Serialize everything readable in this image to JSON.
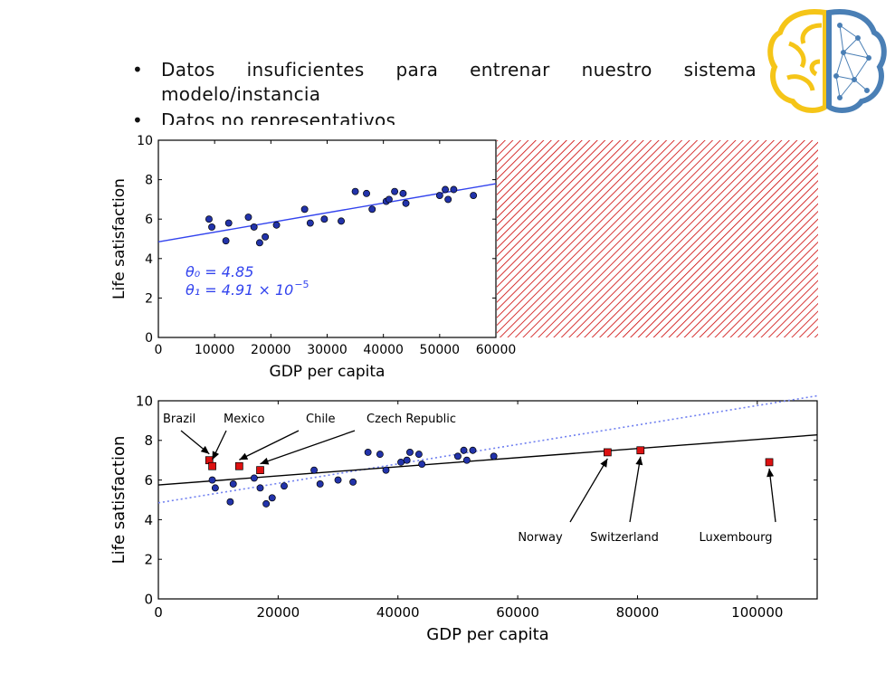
{
  "slide": {
    "bullets": [
      {
        "line1": "Datos insuficientes para entrenar nuestro sistema",
        "line2": "modelo/instancia"
      },
      {
        "line1": "Datos no representativos"
      }
    ],
    "bullet_glyph": "•",
    "logo_icon": "brain-logo-icon",
    "colors": {
      "logo_left": "#f5c518",
      "logo_right": "#4a7fb5"
    }
  },
  "chart_data": [
    {
      "type": "scatter",
      "xlabel": "GDP per capita",
      "ylabel": "Life satisfaction",
      "xlim": [
        0,
        60000
      ],
      "ylim": [
        0,
        10
      ],
      "xticks": [
        0,
        10000,
        20000,
        30000,
        40000,
        50000,
        60000
      ],
      "yticks": [
        0,
        2,
        4,
        6,
        8,
        10
      ],
      "points": [
        [
          9000,
          6.0
        ],
        [
          9500,
          5.6
        ],
        [
          12000,
          4.9
        ],
        [
          12500,
          5.8
        ],
        [
          16000,
          6.1
        ],
        [
          17000,
          5.6
        ],
        [
          18000,
          4.8
        ],
        [
          19000,
          5.1
        ],
        [
          21000,
          5.7
        ],
        [
          26000,
          6.5
        ],
        [
          27000,
          5.8
        ],
        [
          29500,
          6.0
        ],
        [
          32500,
          5.9
        ],
        [
          35000,
          7.4
        ],
        [
          37000,
          7.3
        ],
        [
          38000,
          6.5
        ],
        [
          40500,
          6.9
        ],
        [
          41000,
          7.0
        ],
        [
          42000,
          7.4
        ],
        [
          43500,
          7.3
        ],
        [
          44000,
          6.8
        ],
        [
          50000,
          7.2
        ],
        [
          51000,
          7.5
        ],
        [
          51500,
          7.0
        ],
        [
          52500,
          7.5
        ],
        [
          56000,
          7.2
        ]
      ],
      "fit": {
        "theta0": 4.85,
        "theta1": 4.91e-05,
        "color": "#3344ee"
      },
      "annotation_line1": "θ₀ = 4.85",
      "annotation_line2": "θ₁ = 4.91 × 10",
      "annotation_exp": "−5",
      "colors": {
        "points": "#2233aa",
        "fit": "#3344ee",
        "hatch": "#cc0000"
      }
    },
    {
      "type": "scatter",
      "xlabel": "GDP per capita",
      "ylabel": "Life satisfaction",
      "xlim": [
        0,
        110000
      ],
      "ylim": [
        0,
        10
      ],
      "xticks": [
        0,
        20000,
        40000,
        60000,
        80000,
        100000
      ],
      "yticks": [
        0,
        2,
        4,
        6,
        8,
        10
      ],
      "points": [
        [
          9000,
          6.0
        ],
        [
          9500,
          5.6
        ],
        [
          12000,
          4.9
        ],
        [
          12500,
          5.8
        ],
        [
          16000,
          6.1
        ],
        [
          17000,
          5.6
        ],
        [
          18000,
          4.8
        ],
        [
          19000,
          5.1
        ],
        [
          21000,
          5.7
        ],
        [
          26000,
          6.5
        ],
        [
          27000,
          5.8
        ],
        [
          30000,
          6.0
        ],
        [
          32500,
          5.9
        ],
        [
          35000,
          7.4
        ],
        [
          37000,
          7.3
        ],
        [
          38000,
          6.5
        ],
        [
          40500,
          6.9
        ],
        [
          41500,
          7.0
        ],
        [
          42000,
          7.4
        ],
        [
          43500,
          7.3
        ],
        [
          44000,
          6.8
        ],
        [
          50000,
          7.2
        ],
        [
          51000,
          7.5
        ],
        [
          51500,
          7.0
        ],
        [
          52500,
          7.5
        ],
        [
          56000,
          7.2
        ]
      ],
      "highlighted": [
        {
          "name": "Brazil",
          "x": 8500,
          "y": 7.0
        },
        {
          "name": "Mexico",
          "x": 9000,
          "y": 6.7
        },
        {
          "name": "Chile",
          "x": 13500,
          "y": 6.7
        },
        {
          "name": "Czech Republic",
          "x": 17000,
          "y": 6.5
        },
        {
          "name": "Norway",
          "x": 75000,
          "y": 7.4
        },
        {
          "name": "Switzerland",
          "x": 80500,
          "y": 7.5
        },
        {
          "name": "Luxembourg",
          "x": 102000,
          "y": 6.9
        }
      ],
      "solid_fit": {
        "intercept": 5.75,
        "slope": 2.3e-05,
        "color": "#000000"
      },
      "dotted_fit": {
        "intercept": 4.85,
        "slope": 4.91e-05,
        "color": "#7080f0"
      },
      "colors": {
        "points": "#2233aa",
        "highlighted": "#dd1111"
      }
    }
  ]
}
